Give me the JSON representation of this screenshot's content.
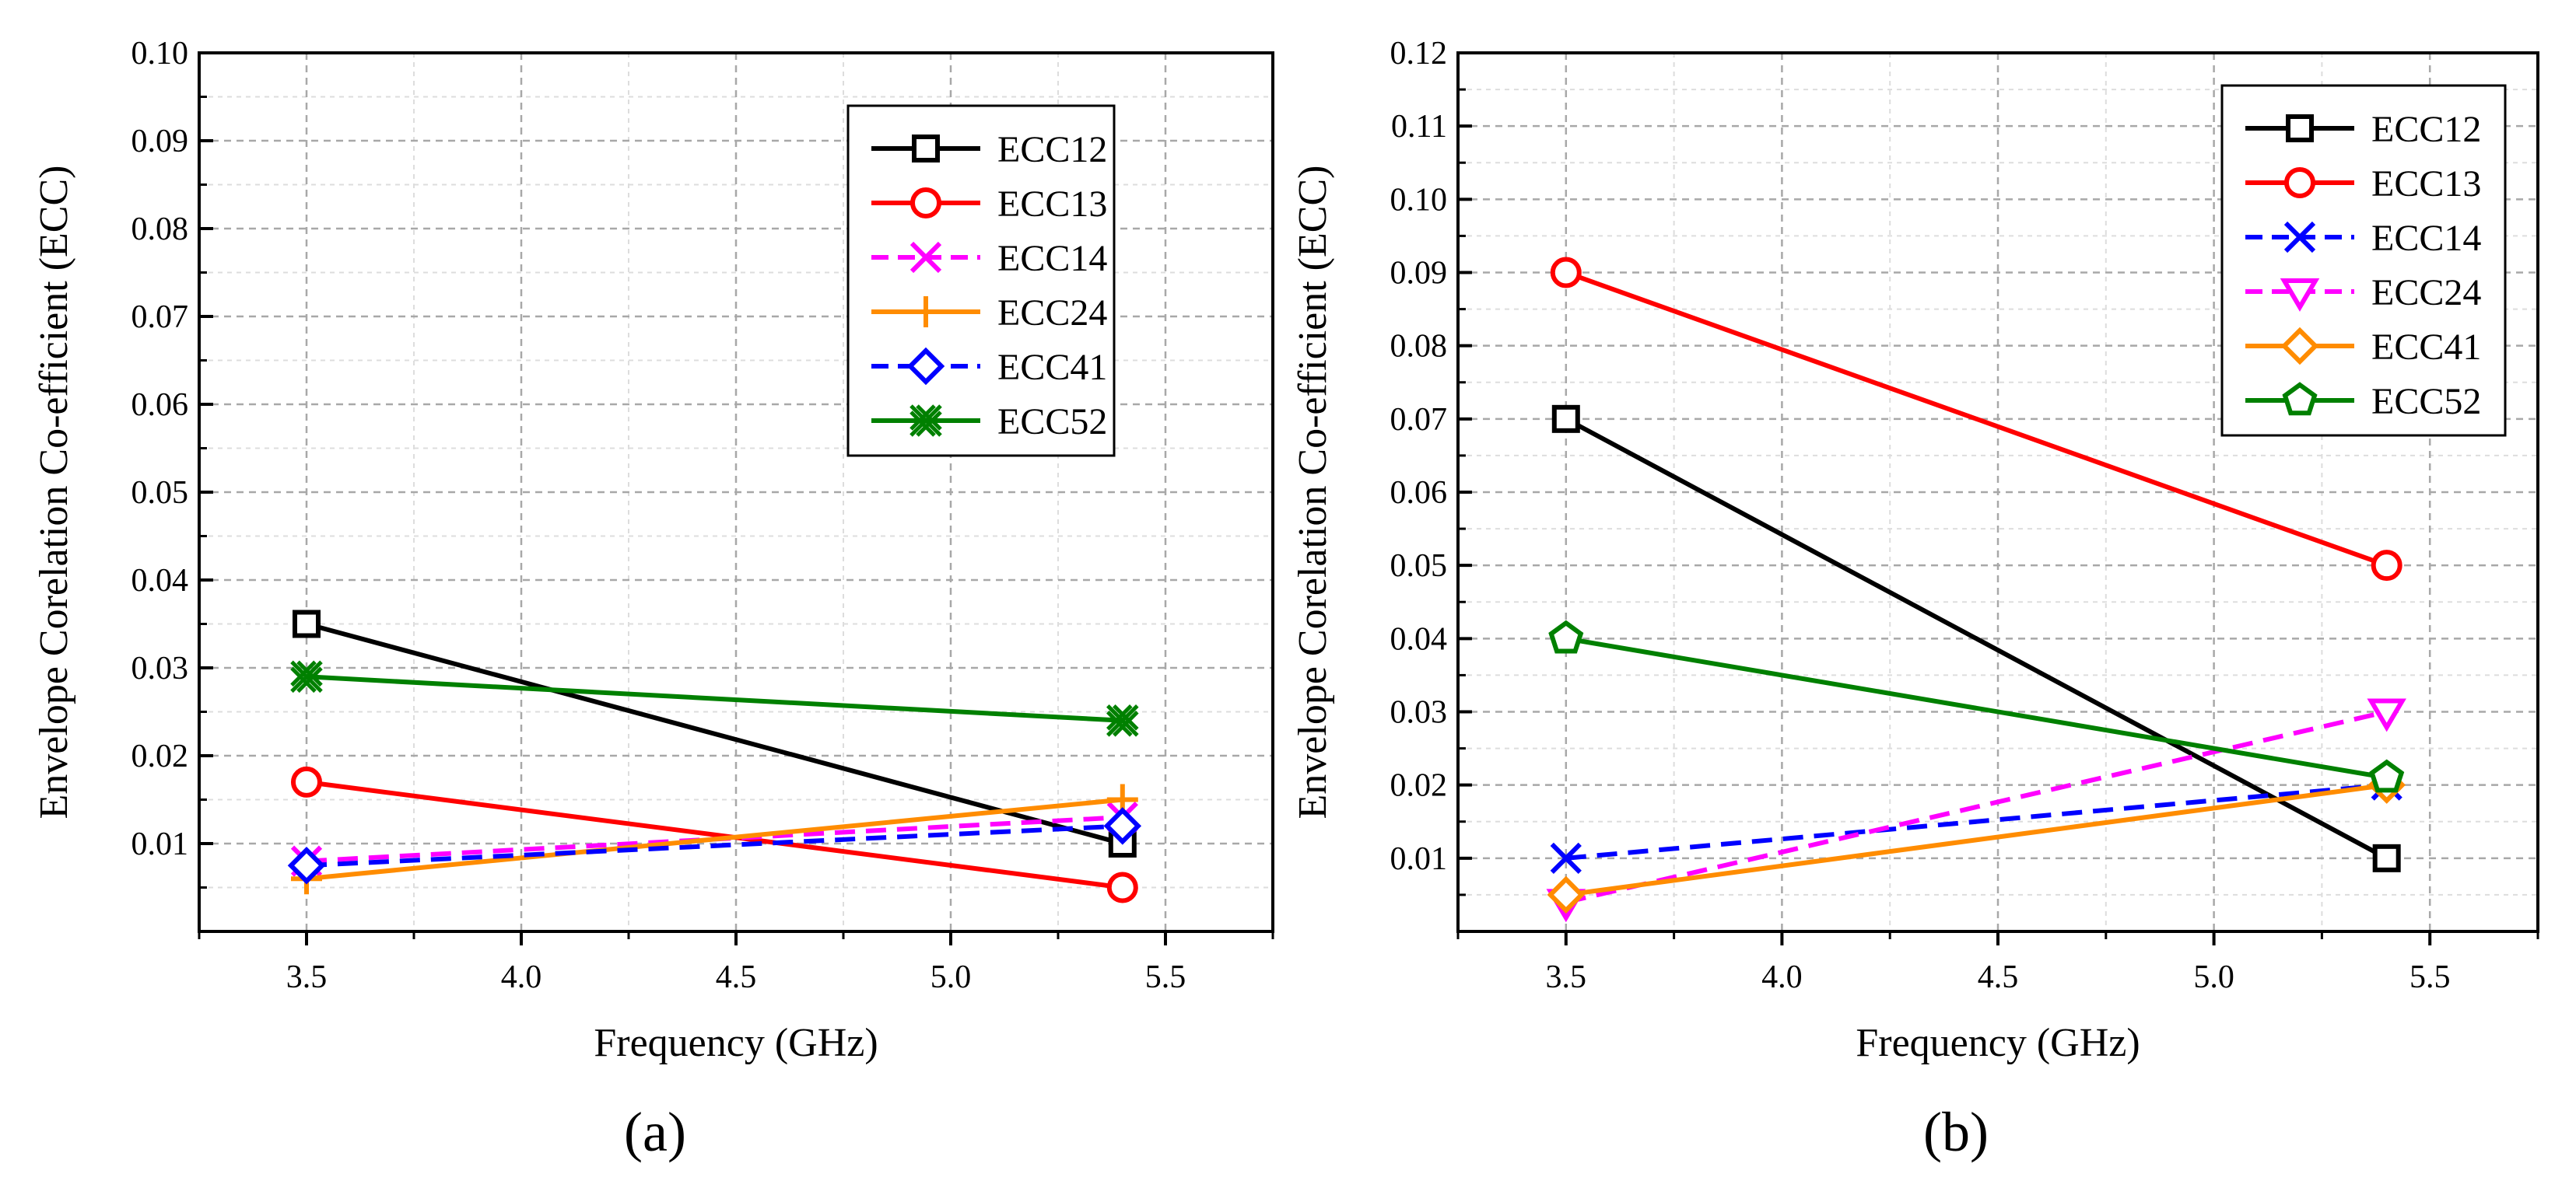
{
  "chart_data": [
    {
      "panel": "a",
      "panel_label": "(a)",
      "type": "line",
      "title": "",
      "xlabel": "Frequency (GHz)",
      "ylabel": "Envelope Corelation Co-efficient (ECC)",
      "xlim": [
        3.25,
        5.75
      ],
      "ylim": [
        0.0,
        0.1
      ],
      "x_ticks": [
        "3.5",
        "4.0",
        "4.5",
        "5.0",
        "5.5"
      ],
      "y_ticks": [
        "0.01",
        "0.02",
        "0.03",
        "0.04",
        "0.05",
        "0.06",
        "0.07",
        "0.08",
        "0.09",
        "0.10"
      ],
      "grid": true,
      "legend_position": "top-right",
      "x": [
        3.5,
        5.4
      ],
      "series": [
        {
          "name": "ECC12",
          "values": [
            0.035,
            0.01
          ],
          "color": "#000000",
          "dash": "solid",
          "marker": "square"
        },
        {
          "name": "ECC13",
          "values": [
            0.017,
            0.005
          ],
          "color": "#ff0000",
          "dash": "solid",
          "marker": "circle"
        },
        {
          "name": "ECC14",
          "values": [
            0.008,
            0.013
          ],
          "color": "#ff00ff",
          "dash": "dash",
          "marker": "x"
        },
        {
          "name": "ECC24",
          "values": [
            0.006,
            0.015
          ],
          "color": "#ff8c00",
          "dash": "solid",
          "marker": "plus"
        },
        {
          "name": "ECC41",
          "values": [
            0.0075,
            0.012
          ],
          "color": "#0000ff",
          "dash": "dash",
          "marker": "diamond"
        },
        {
          "name": "ECC52",
          "values": [
            0.029,
            0.024
          ],
          "color": "#008000",
          "dash": "solid",
          "marker": "xcircle"
        }
      ]
    },
    {
      "panel": "b",
      "panel_label": "(b)",
      "type": "line",
      "title": "",
      "xlabel": "Frequency (GHz)",
      "ylabel": "Envelope Corelation Co-efficient (ECC)",
      "xlim": [
        3.25,
        5.75
      ],
      "ylim": [
        0.0,
        0.12
      ],
      "x_ticks": [
        "3.5",
        "4.0",
        "4.5",
        "5.0",
        "5.5"
      ],
      "y_ticks": [
        "0.01",
        "0.02",
        "0.03",
        "0.04",
        "0.05",
        "0.06",
        "0.07",
        "0.08",
        "0.09",
        "0.10",
        "0.11",
        "0.12"
      ],
      "grid": true,
      "legend_position": "top-right",
      "x": [
        3.5,
        5.4
      ],
      "series": [
        {
          "name": "ECC12",
          "values": [
            0.07,
            0.01
          ],
          "color": "#000000",
          "dash": "solid",
          "marker": "square"
        },
        {
          "name": "ECC13",
          "values": [
            0.09,
            0.05
          ],
          "color": "#ff0000",
          "dash": "solid",
          "marker": "circle"
        },
        {
          "name": "ECC14",
          "values": [
            0.01,
            0.02
          ],
          "color": "#0000ff",
          "dash": "dash",
          "marker": "x"
        },
        {
          "name": "ECC24",
          "values": [
            0.004,
            0.03
          ],
          "color": "#ff00ff",
          "dash": "dash",
          "marker": "triangle-down"
        },
        {
          "name": "ECC41",
          "values": [
            0.005,
            0.02
          ],
          "color": "#ff8c00",
          "dash": "solid",
          "marker": "diamond"
        },
        {
          "name": "ECC52",
          "values": [
            0.04,
            0.021
          ],
          "color": "#008000",
          "dash": "solid",
          "marker": "pentagon"
        }
      ]
    }
  ]
}
